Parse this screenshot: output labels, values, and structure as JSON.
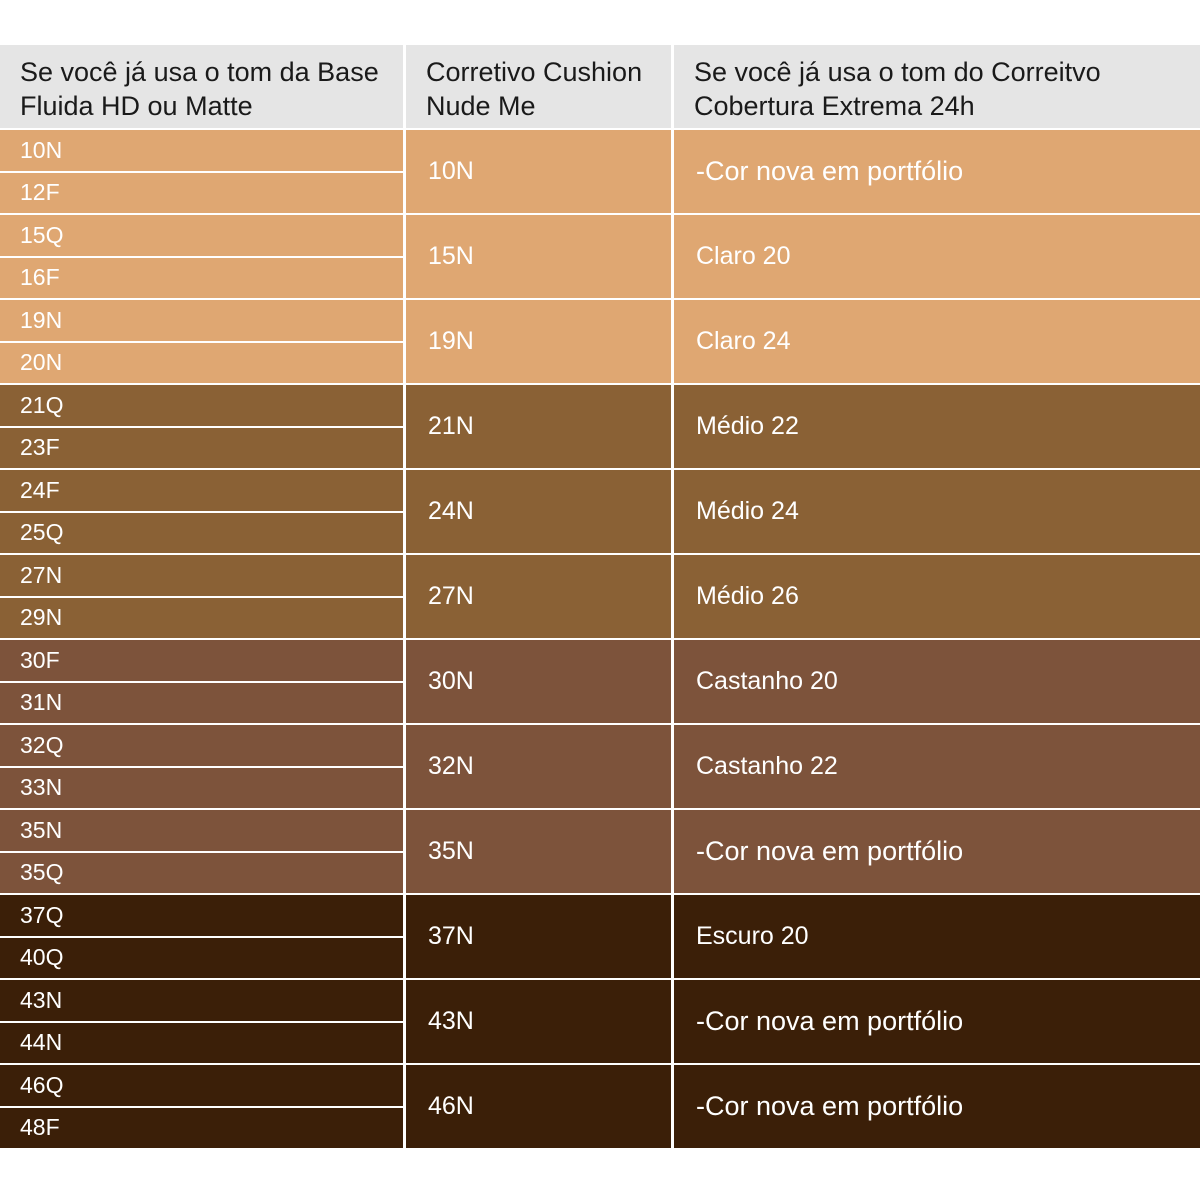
{
  "header": {
    "col1": "Se você já usa o tom da Base Fluida HD ou Matte",
    "col2": "Corretivo Cushion Nude Me",
    "col3": "Se você já usa o tom do Correitvo Cobertura Extrema 24h"
  },
  "colors": {
    "light": "#dfa772",
    "medium": "#8a6135",
    "castanho": "#7d533b",
    "dark": "#3b1f08"
  },
  "rows": [
    {
      "bases": [
        "10N",
        "12F"
      ],
      "cushion": "10N",
      "corretivo": "-Cor nova em portfólio",
      "tone": "light"
    },
    {
      "bases": [
        "15Q",
        "16F"
      ],
      "cushion": "15N",
      "corretivo": "Claro 20",
      "tone": "light"
    },
    {
      "bases": [
        "19N",
        "20N"
      ],
      "cushion": "19N",
      "corretivo": "Claro 24",
      "tone": "light"
    },
    {
      "bases": [
        "21Q",
        "23F"
      ],
      "cushion": "21N",
      "corretivo": "Médio 22",
      "tone": "medium"
    },
    {
      "bases": [
        "24F",
        "25Q"
      ],
      "cushion": "24N",
      "corretivo": "Médio 24",
      "tone": "medium"
    },
    {
      "bases": [
        "27N",
        "29N"
      ],
      "cushion": "27N",
      "corretivo": "Médio 26",
      "tone": "medium"
    },
    {
      "bases": [
        "30F",
        "31N"
      ],
      "cushion": "30N",
      "corretivo": "Castanho 20",
      "tone": "castanho"
    },
    {
      "bases": [
        "32Q",
        "33N"
      ],
      "cushion": "32N",
      "corretivo": "Castanho 22",
      "tone": "castanho"
    },
    {
      "bases": [
        "35N",
        "35Q"
      ],
      "cushion": "35N",
      "corretivo": "-Cor nova em portfólio",
      "tone": "castanho"
    },
    {
      "bases": [
        "37Q",
        "40Q"
      ],
      "cushion": "37N",
      "corretivo": "Escuro 20",
      "tone": "dark"
    },
    {
      "bases": [
        "43N",
        "44N"
      ],
      "cushion": "43N",
      "corretivo": "-Cor nova em portfólio",
      "tone": "dark"
    },
    {
      "bases": [
        "46Q",
        "48F"
      ],
      "cushion": "46N",
      "corretivo": "-Cor nova em portfólio",
      "tone": "dark"
    }
  ]
}
